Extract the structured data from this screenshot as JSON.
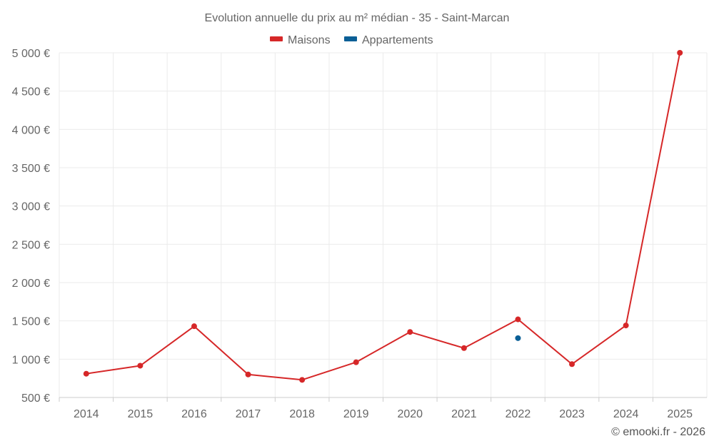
{
  "chart_data": {
    "type": "line",
    "title": "Evolution annuelle du prix au m² médian - 35 - Saint-Marcan",
    "categories": [
      "2014",
      "2015",
      "2016",
      "2017",
      "2018",
      "2019",
      "2020",
      "2021",
      "2022",
      "2023",
      "2024",
      "2025"
    ],
    "series": [
      {
        "name": "Maisons",
        "color": "#d62728",
        "values": [
          810,
          915,
          1430,
          800,
          730,
          960,
          1355,
          1145,
          1520,
          935,
          1440,
          5000
        ]
      },
      {
        "name": "Appartements",
        "color": "#0a5f96",
        "values": [
          null,
          null,
          null,
          null,
          null,
          null,
          null,
          null,
          1275,
          null,
          null,
          null
        ]
      }
    ],
    "y_ticks": [
      "500 €",
      "1 000 €",
      "1 500 €",
      "2 000 €",
      "2 500 €",
      "3 000 €",
      "3 500 €",
      "4 000 €",
      "4 500 €",
      "5 000 €"
    ],
    "ylim": [
      500,
      5000
    ],
    "xlabel": "",
    "ylabel": "",
    "grid": true,
    "legend_position": "top-center"
  },
  "credit": "© emooki.fr - 2026"
}
